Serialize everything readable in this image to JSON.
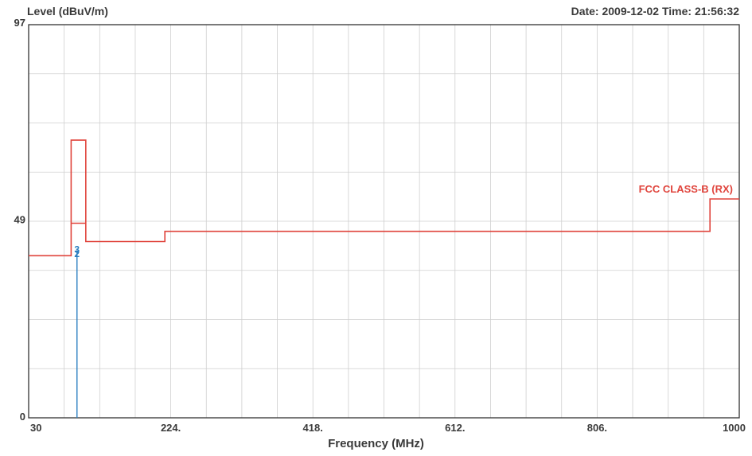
{
  "header": {
    "ylabel": "Level (dBuV/m)",
    "datetime": "Date: 2009-12-02  Time: 21:56:32"
  },
  "colors": {
    "limit": "#e0443c",
    "marker": "#2a7fc1",
    "grid": "#cfcfcf",
    "frame": "#333333"
  },
  "chart_data": {
    "type": "line",
    "title": "",
    "xlabel": "Frequency (MHz)",
    "ylabel": "Level (dBuV/m)",
    "xlim": [
      30,
      1000
    ],
    "ylim": [
      0,
      97
    ],
    "x_ticks": [
      {
        "value": 30,
        "label": "30"
      },
      {
        "value": 224,
        "label": "224."
      },
      {
        "value": 418,
        "label": "418."
      },
      {
        "value": 612,
        "label": "612."
      },
      {
        "value": 806,
        "label": "806."
      },
      {
        "value": 1000,
        "label": "1000"
      }
    ],
    "y_ticks": [
      {
        "value": 0,
        "label": "0"
      },
      {
        "value": 49,
        "label": "49"
      },
      {
        "value": 97,
        "label": "97"
      }
    ],
    "x_grid_step": 48.5,
    "y_grid_step": 12.125,
    "grid": true,
    "series": [
      {
        "name": "FCC CLASS-B (RX)",
        "color": "#e0443c",
        "points": [
          [
            30,
            40
          ],
          [
            88,
            40
          ],
          [
            88,
            68.5
          ],
          [
            108,
            68.5
          ],
          [
            108,
            43.5
          ],
          [
            216,
            43.5
          ],
          [
            216,
            46
          ],
          [
            960,
            46
          ],
          [
            960,
            54
          ],
          [
            1000,
            54
          ]
        ]
      },
      {
        "name": "",
        "color": "#e0443c",
        "points": [
          [
            88,
            48
          ],
          [
            108,
            48
          ]
        ]
      }
    ],
    "markers": [
      {
        "label": "2",
        "x": 96,
        "y": 39.5
      },
      {
        "label": "3",
        "x": 96,
        "y": 40.5
      }
    ]
  }
}
